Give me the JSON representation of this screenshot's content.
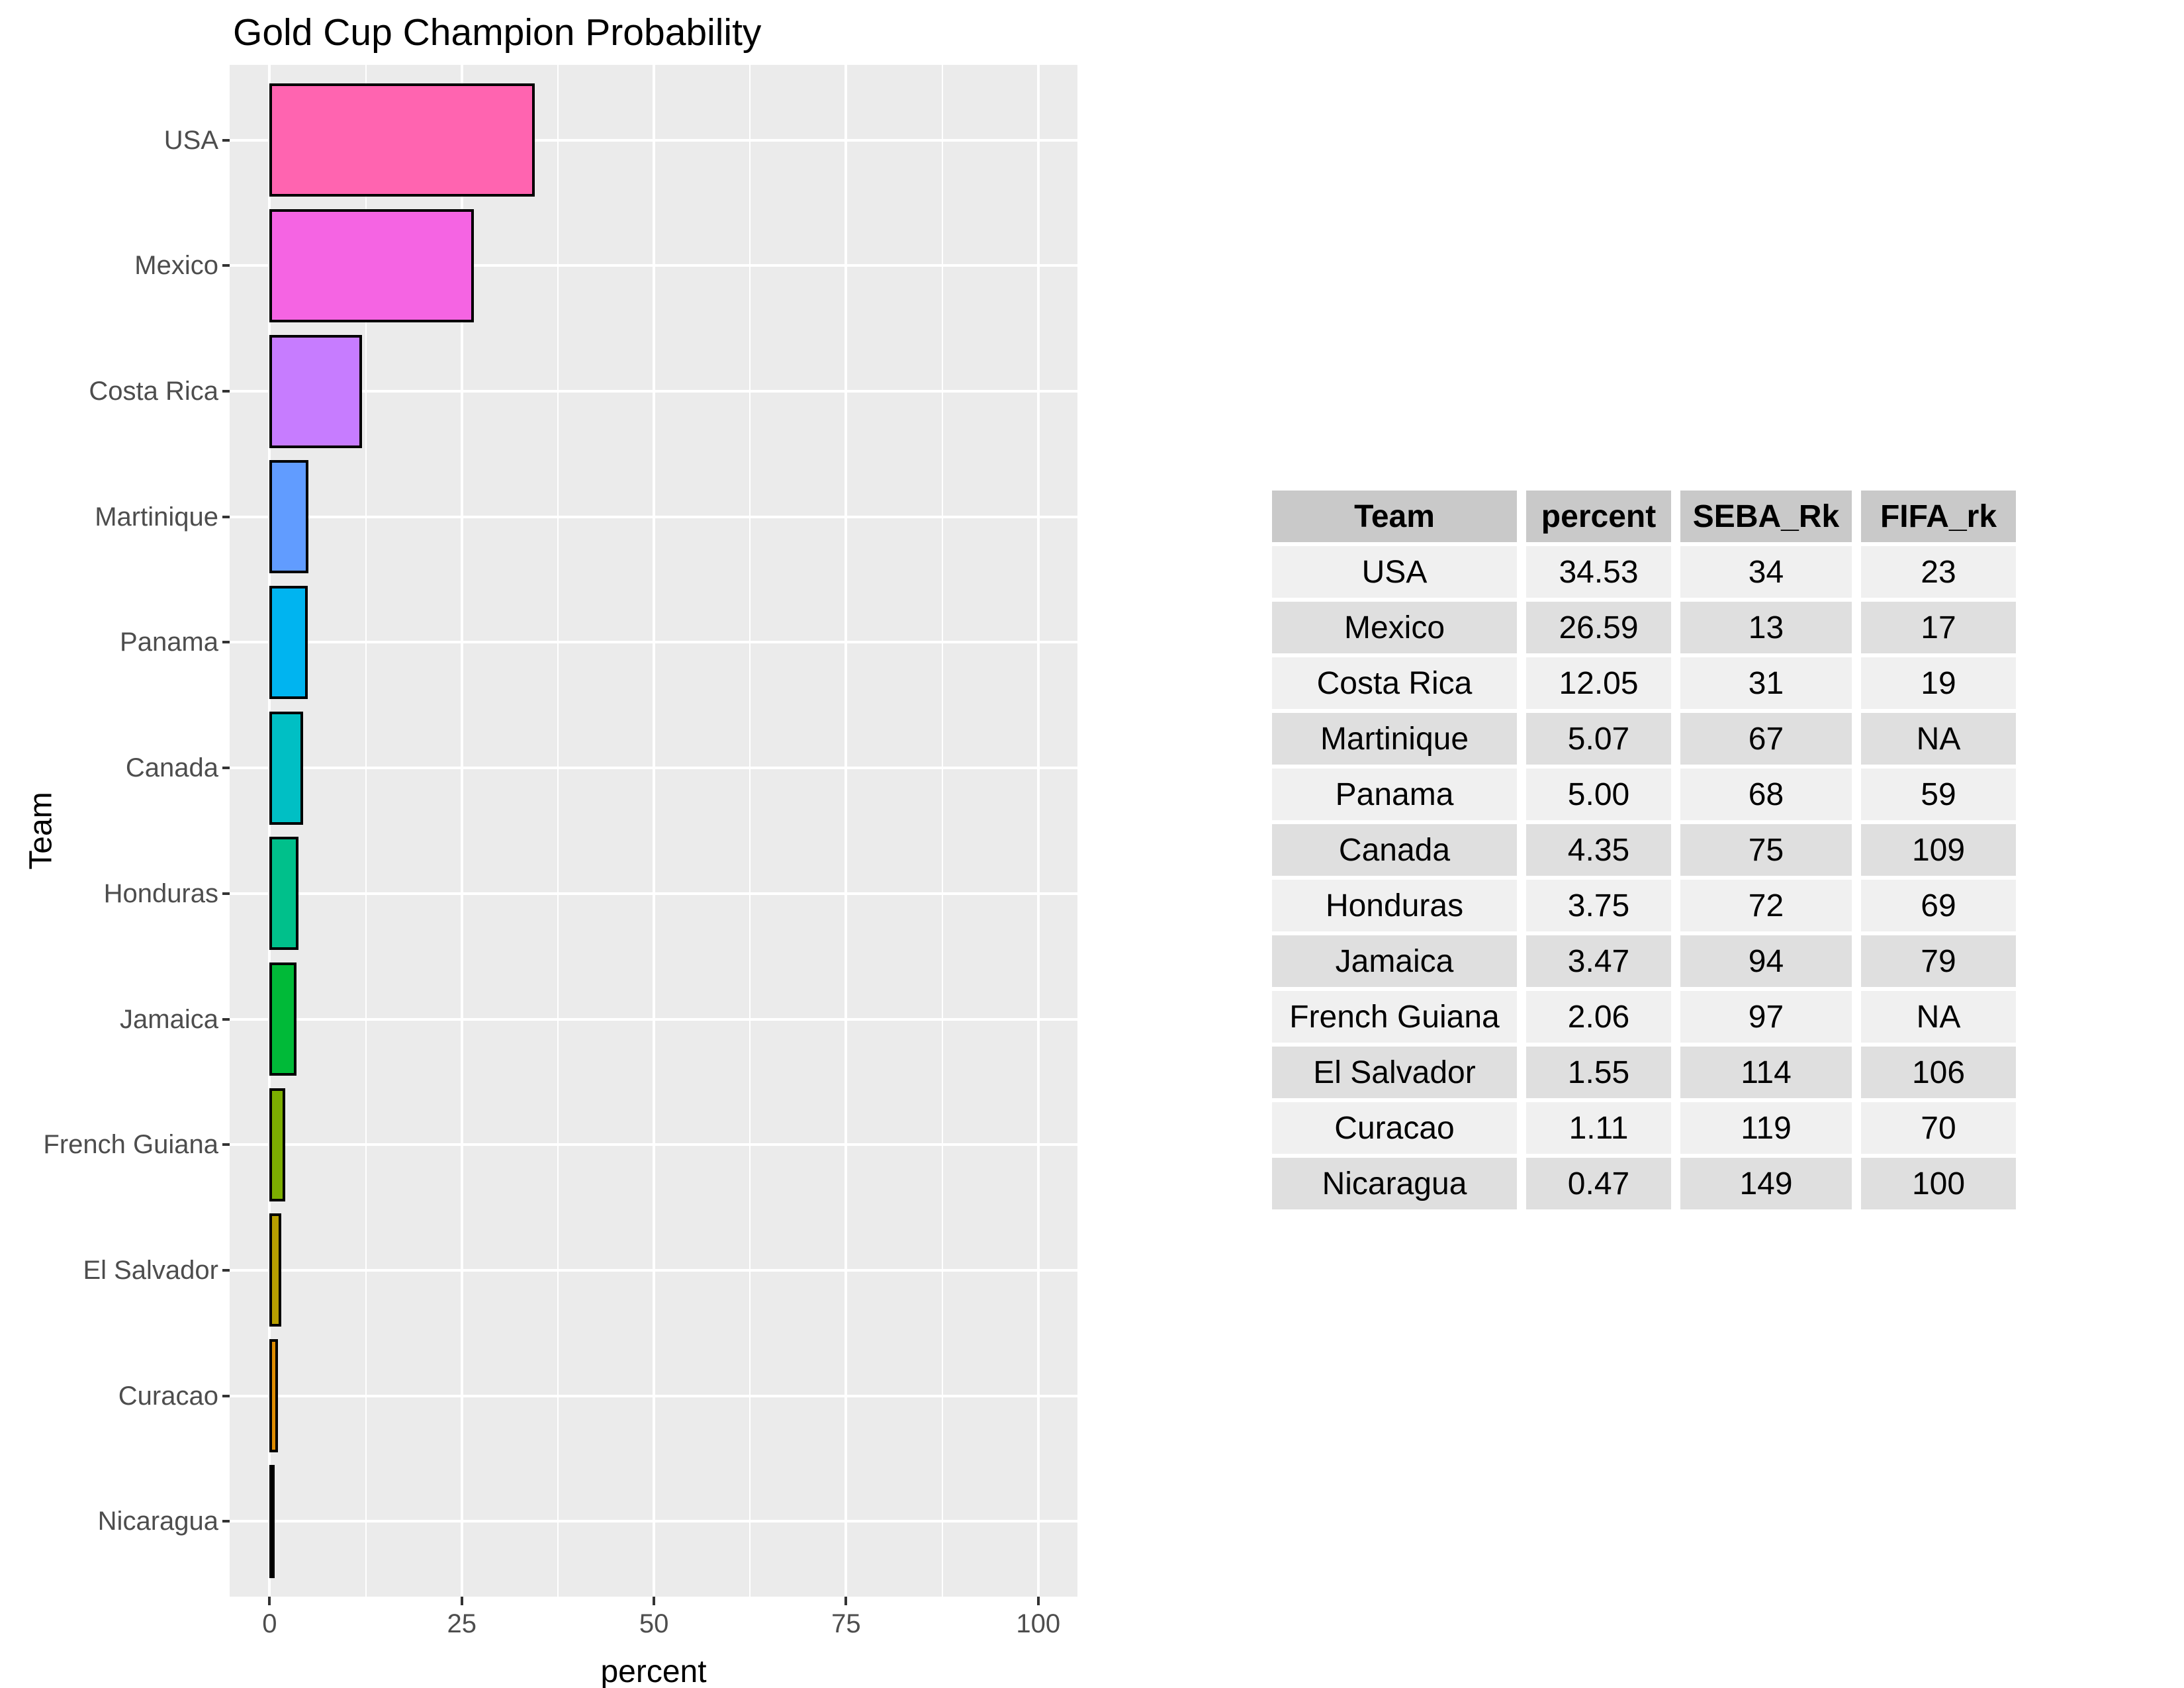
{
  "chart_data": {
    "type": "bar",
    "orientation": "horizontal",
    "title": "Gold Cup Champion Probability",
    "xlabel": "percent",
    "ylabel": "Team",
    "categories": [
      "USA",
      "Mexico",
      "Costa Rica",
      "Martinique",
      "Panama",
      "Canada",
      "Honduras",
      "Jamaica",
      "French Guiana",
      "El Salvador",
      "Curacao",
      "Nicaragua"
    ],
    "values": [
      34.53,
      26.59,
      12.05,
      5.07,
      5.0,
      4.35,
      3.75,
      3.47,
      2.06,
      1.55,
      1.11,
      0.47
    ],
    "bar_colors": [
      "#FF64B0",
      "#F564E3",
      "#C77CFF",
      "#619CFF",
      "#00B4F0",
      "#00BFC4",
      "#00C08B",
      "#00BA38",
      "#7CAE00",
      "#B79F00",
      "#DE8C00",
      "#F8766D"
    ],
    "x_ticks": [
      0,
      25,
      50,
      75,
      100
    ],
    "x_minor_ticks": [
      12.5,
      37.5,
      62.5,
      87.5
    ],
    "xlim": [
      -5.2,
      105.1
    ],
    "grid": true,
    "legend_position": "none",
    "panel_bg": "#EBEBEB",
    "grid_color": "#FFFFFF",
    "bar_border_color": "#000000",
    "tick_mark_color": "#333333",
    "tick_label_color": "#4D4D4D"
  },
  "table": {
    "headers": [
      "Team",
      "percent",
      "SEBA_Rk",
      "FIFA_rk"
    ],
    "rows": [
      [
        "USA",
        "34.53",
        "34",
        "23"
      ],
      [
        "Mexico",
        "26.59",
        "13",
        "17"
      ],
      [
        "Costa Rica",
        "12.05",
        "31",
        "19"
      ],
      [
        "Martinique",
        "5.07",
        "67",
        "NA"
      ],
      [
        "Panama",
        "5.00",
        "68",
        "59"
      ],
      [
        "Canada",
        "4.35",
        "75",
        "109"
      ],
      [
        "Honduras",
        "3.75",
        "72",
        "69"
      ],
      [
        "Jamaica",
        "3.47",
        "94",
        "79"
      ],
      [
        "French Guiana",
        "2.06",
        "97",
        "NA"
      ],
      [
        "El Salvador",
        "1.55",
        "114",
        "106"
      ],
      [
        "Curacao",
        "1.11",
        "119",
        "70"
      ],
      [
        "Nicaragua",
        "0.47",
        "149",
        "100"
      ]
    ],
    "header_bg": "#C9C9C9",
    "row_bg_light": "#F0F0F0",
    "row_bg_dark": "#DFDFDF"
  }
}
